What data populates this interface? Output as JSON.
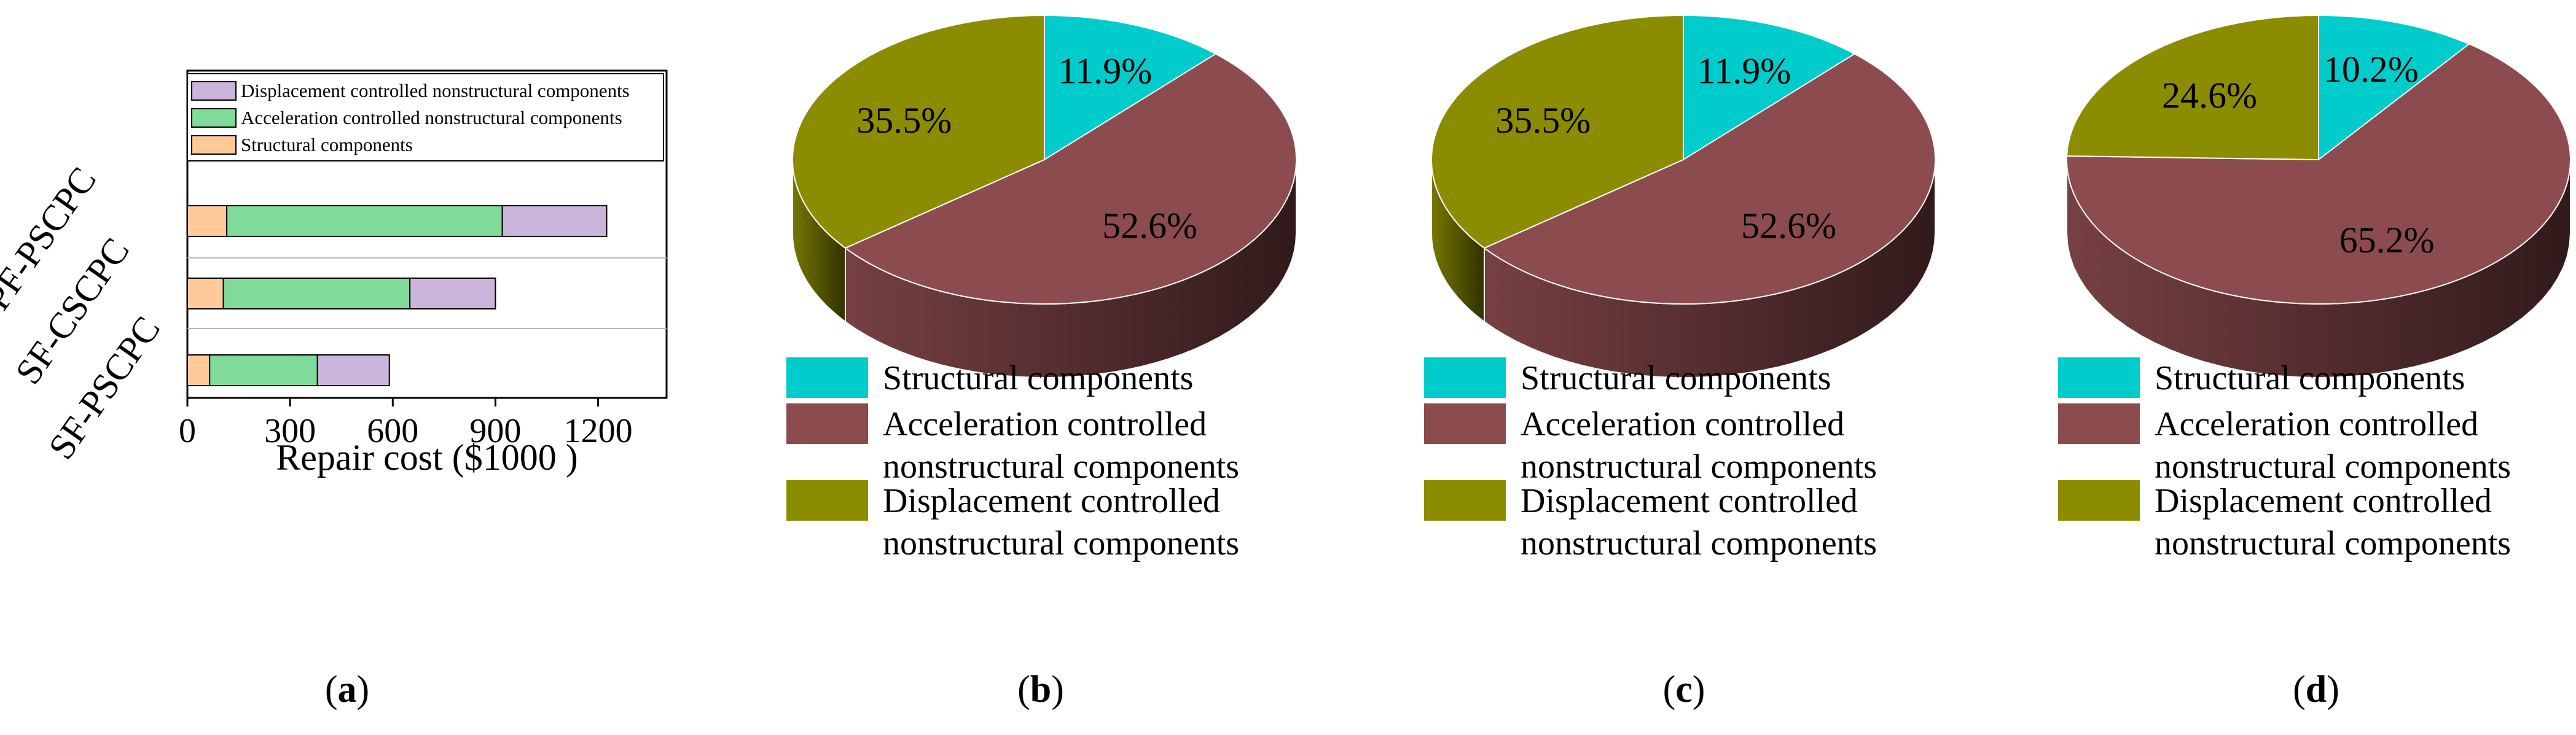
{
  "colors": {
    "structural": "#00CCCC",
    "acceleration": "#8C4B4E",
    "displacement": "#8C8C00",
    "bar_structural": "#FFC999",
    "bar_acceleration": "#80DA9A",
    "bar_displacement": "#CCB5DB"
  },
  "panel_labels": [
    {
      "open": "(",
      "letter": "a",
      "close": ")"
    },
    {
      "open": "(",
      "letter": "b",
      "close": ")"
    },
    {
      "open": "(",
      "letter": "c",
      "close": ")"
    },
    {
      "open": "(",
      "letter": "d",
      "close": ")"
    }
  ],
  "chart_data": [
    {
      "type": "bar",
      "orientation": "horizontal",
      "stacked": true,
      "categories": [
        "PF-PSCPC",
        "SF-CSCPC",
        "SF-PSCPC"
      ],
      "series": [
        {
          "name": "Structural components",
          "values": [
            115,
            105,
            65
          ]
        },
        {
          "name": "Acceleration controlled nonstructural components",
          "values": [
            805,
            545,
            315
          ]
        },
        {
          "name": "Displacement controlled nonstructural components",
          "values": [
            305,
            250,
            210
          ]
        }
      ],
      "xlabel": "Repair cost ($1000 )",
      "xlim": [
        0,
        1400
      ],
      "xticks": [
        "0",
        "300",
        "600",
        "900",
        "1200"
      ],
      "legend_order": [
        "Displacement controlled nonstructural components",
        "Acceleration controlled nonstructural components",
        "Structural components"
      ],
      "legend_position": "top",
      "grid": false
    },
    {
      "type": "pie",
      "style": "3d",
      "slices": [
        {
          "name": "Structural components",
          "value": 11.9,
          "label": "11.9%"
        },
        {
          "name": "Acceleration controlled nonstructural components",
          "value": 52.6,
          "label": "52.6%"
        },
        {
          "name": "Displacement controlled nonstructural components",
          "value": 35.5,
          "label": "35.5%"
        }
      ],
      "legend": [
        {
          "lines": [
            "Structural components"
          ]
        },
        {
          "lines": [
            "Acceleration controlled",
            "nonstructural components"
          ]
        },
        {
          "lines": [
            "Displacement controlled",
            "nonstructural components"
          ]
        }
      ]
    },
    {
      "type": "pie",
      "style": "3d",
      "slices": [
        {
          "name": "Structural components",
          "value": 11.9,
          "label": "11.9%"
        },
        {
          "name": "Acceleration controlled nonstructural components",
          "value": 52.6,
          "label": "52.6%"
        },
        {
          "name": "Displacement controlled nonstructural components",
          "value": 35.5,
          "label": "35.5%"
        }
      ],
      "legend": [
        {
          "lines": [
            "Structural components"
          ]
        },
        {
          "lines": [
            "Acceleration controlled",
            "nonstructural components"
          ]
        },
        {
          "lines": [
            "Displacement controlled",
            "nonstructural components"
          ]
        }
      ]
    },
    {
      "type": "pie",
      "style": "3d",
      "slices": [
        {
          "name": "Structural components",
          "value": 10.2,
          "label": "10.2%"
        },
        {
          "name": "Acceleration controlled nonstructural components",
          "value": 65.2,
          "label": "65.2%"
        },
        {
          "name": "Displacement controlled nonstructural components",
          "value": 24.6,
          "label": "24.6%"
        }
      ],
      "legend": [
        {
          "lines": [
            "Structural components"
          ]
        },
        {
          "lines": [
            "Acceleration controlled",
            "nonstructural components"
          ]
        },
        {
          "lines": [
            "Displacement controlled",
            "nonstructural components"
          ]
        }
      ]
    }
  ]
}
